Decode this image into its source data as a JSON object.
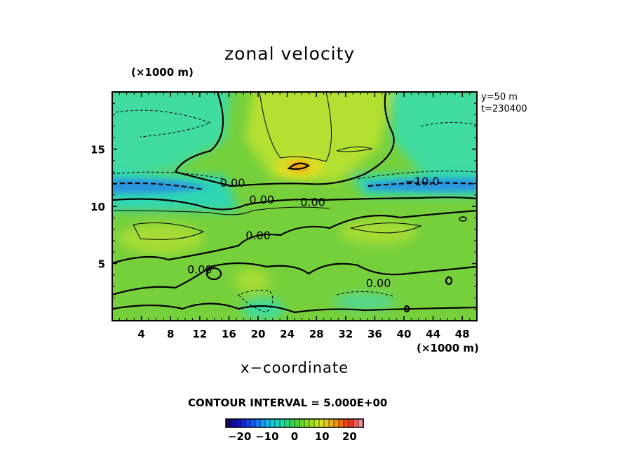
{
  "chart_data": {
    "type": "heatmap",
    "title": "zonal velocity",
    "xlabel": "x−coordinate",
    "x_unit": "(×1000 m)",
    "y_unit": "(×1000 m)",
    "xlim": [
      0,
      50
    ],
    "ylim": [
      0,
      20
    ],
    "x_ticks": [
      4,
      8,
      12,
      16,
      20,
      24,
      28,
      32,
      36,
      40,
      44,
      48
    ],
    "y_ticks": [
      5,
      10,
      15
    ],
    "annotations": [
      "y=50  m",
      "t=230400"
    ],
    "contour_interval_text": "CONTOUR INTERVAL = 5.000E+00",
    "contour_labels": [
      {
        "text": "0.00",
        "x": 16.5,
        "y": 12.1
      },
      {
        "text": "0.00",
        "x": 20.5,
        "y": 10.6
      },
      {
        "text": "0.00",
        "x": 27.5,
        "y": 10.4
      },
      {
        "text": "0.00",
        "x": 20.0,
        "y": 7.5
      },
      {
        "text": "0.00",
        "x": 12.0,
        "y": 4.5
      },
      {
        "text": "0.00",
        "x": 36.5,
        "y": 3.3
      },
      {
        "text": "−10.0",
        "x": 42.5,
        "y": 12.2
      }
    ],
    "features": [
      {
        "kind": "jet",
        "value": -12,
        "x_range": [
          0,
          10
        ],
        "y": 11.9
      },
      {
        "kind": "jet",
        "value": -12,
        "x_range": [
          35,
          50
        ],
        "y": 11.9
      },
      {
        "kind": "max",
        "value": 10,
        "x": 25.5,
        "y": 13.3
      }
    ],
    "colorbar": {
      "range": [
        -25,
        25
      ],
      "tick_labels": [
        "−20",
        "−10",
        "0",
        "10",
        "20"
      ],
      "tick_values": [
        -20,
        -10,
        0,
        10,
        20
      ]
    },
    "colors": {
      "background_field": "#78d23a",
      "negative": "#1ed2aa",
      "strong_negative": "#1e78e6",
      "positive": "#d2e628",
      "maximum": "#e68c14"
    }
  }
}
